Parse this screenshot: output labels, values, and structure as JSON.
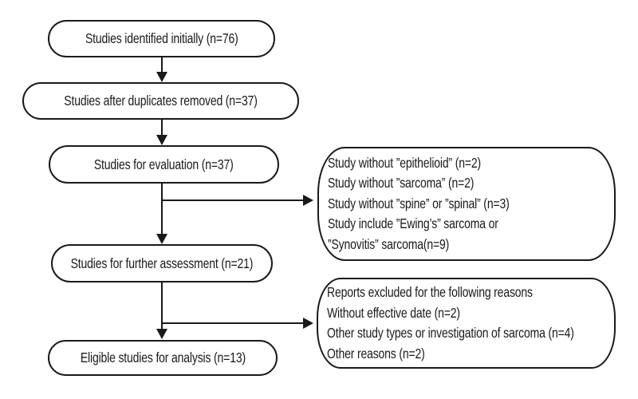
{
  "diagram": {
    "type": "flowchart",
    "boxes": [
      {
        "id": "identified",
        "label": "Studies identified initially (n=76)"
      },
      {
        "id": "duplicates-removed",
        "label": "Studies after duplicates removed (n=37)"
      },
      {
        "id": "evaluation",
        "label": "Studies for evaluation (n=37)"
      },
      {
        "id": "further-assessment",
        "label": "Studies for further assessment (n=21)"
      },
      {
        "id": "eligible",
        "label": "Eligible studies for analysis (n=13)"
      }
    ],
    "bubbles": [
      {
        "id": "evaluation-exclusions",
        "lines": [
          "Study without ”epithelioid” (n=2)",
          "Study without ”sarcoma” (n=2)",
          "Study without ”spine” or ”spinal” (n=3)",
          "Study include ”Ewing’s” sarcoma or",
          "”Synovitis” sarcoma(n=9)"
        ]
      },
      {
        "id": "assessment-exclusions",
        "lines": [
          "Reports excluded for the following reasons",
          "Without effective date (n=2)",
          "Other study types or investigation of sarcoma (n=4)",
          "Other reasons (n=2)"
        ]
      }
    ],
    "colors": {
      "stroke": "#1a1a1a",
      "text": "#1a1a1a",
      "background": "#ffffff"
    }
  }
}
